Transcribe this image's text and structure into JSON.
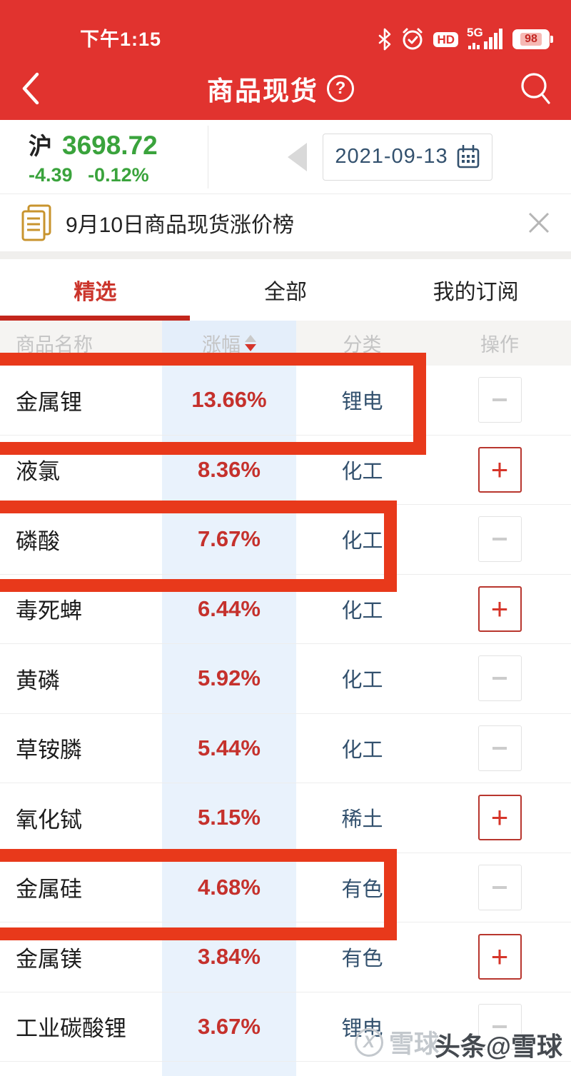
{
  "status_bar": {
    "time": "下午1:15",
    "battery_level": "98",
    "network_label": "5G",
    "hd_label": "HD"
  },
  "nav_bar": {
    "title": "商品现货",
    "help_label": "?"
  },
  "market_index": {
    "name": "沪",
    "value": "3698.72",
    "change": "-4.39",
    "change_pct": "-0.12%"
  },
  "date_picker": {
    "value": "2021-09-13"
  },
  "notice_banner": {
    "text": "9月10日商品现货涨价榜"
  },
  "tabs": [
    {
      "label": "精选",
      "active": true
    },
    {
      "label": "全部",
      "active": false
    },
    {
      "label": "我的订阅",
      "active": false
    }
  ],
  "table": {
    "columns": [
      {
        "label": "商品名称",
        "sortable": false
      },
      {
        "label": "涨幅",
        "sortable": true
      },
      {
        "label": "分类",
        "sortable": false
      },
      {
        "label": "操作",
        "sortable": false
      }
    ],
    "rows": [
      {
        "name": "金属锂",
        "pct": "13.66%",
        "category": "锂电",
        "action": "minus",
        "highlighted": true
      },
      {
        "name": "液氯",
        "pct": "8.36%",
        "category": "化工",
        "action": "plus",
        "highlighted": false
      },
      {
        "name": "磷酸",
        "pct": "7.67%",
        "category": "化工",
        "action": "minus",
        "highlighted": true
      },
      {
        "name": "毒死蜱",
        "pct": "6.44%",
        "category": "化工",
        "action": "plus",
        "highlighted": false
      },
      {
        "name": "黄磷",
        "pct": "5.92%",
        "category": "化工",
        "action": "minus",
        "highlighted": false
      },
      {
        "name": "草铵膦",
        "pct": "5.44%",
        "category": "化工",
        "action": "minus",
        "highlighted": false
      },
      {
        "name": "氧化铽",
        "pct": "5.15%",
        "category": "稀土",
        "action": "plus",
        "highlighted": false
      },
      {
        "name": "金属硅",
        "pct": "4.68%",
        "category": "有色",
        "action": "minus",
        "highlighted": true
      },
      {
        "name": "金属镁",
        "pct": "3.84%",
        "category": "有色",
        "action": "plus",
        "highlighted": false
      },
      {
        "name": "工业碳酸锂",
        "pct": "3.67%",
        "category": "锂电",
        "action": "minus",
        "highlighted": false
      }
    ],
    "action_icons": {
      "plus": "+",
      "minus": ""
    }
  },
  "watermarks": {
    "xueqiu": "雪球：",
    "toutiao": "头条@雪球",
    "logo_glyph": "X"
  },
  "colors": {
    "app_red": "#e1332f",
    "annotation_red": "#e8391b",
    "rise_red": "#c5312c",
    "index_green": "#3aa33c",
    "category_blue": "#33516e",
    "active_tab_red": "#cb352c",
    "pct_column_blue": "#e9f2fc"
  }
}
